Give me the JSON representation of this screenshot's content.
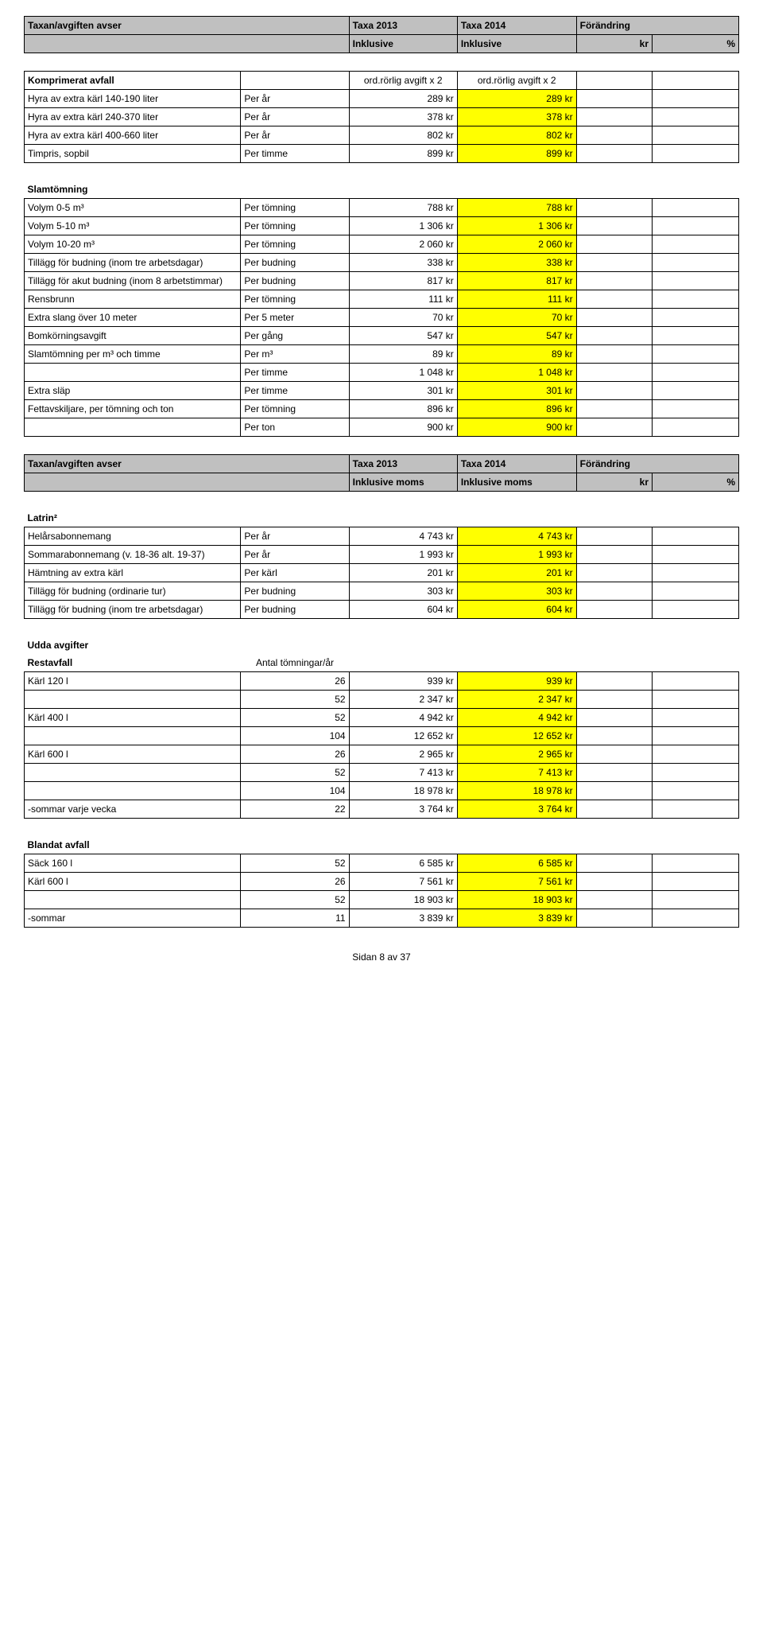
{
  "header": {
    "c1": "Taxan/avgiften avser",
    "c3": "Taxa 2013",
    "c4": "Taxa 2014",
    "c5": "Förändring",
    "r2c3": "Inklusive",
    "r2c4": "Inklusive",
    "r2c5": "kr",
    "r2c6": "%"
  },
  "komp": {
    "title": "Komprimerat avfall",
    "hdr13": "ord.rörlig avgift x 2",
    "hdr14": "ord.rörlig avgift x 2",
    "rows": [
      {
        "desc": "Hyra av extra kärl 140-190 liter",
        "unit": "Per år",
        "v13": "289 kr",
        "v14": "289 kr"
      },
      {
        "desc": "Hyra av extra kärl 240-370 liter",
        "unit": "Per år",
        "v13": "378 kr",
        "v14": "378 kr"
      },
      {
        "desc": "Hyra av extra kärl 400-660 liter",
        "unit": "Per år",
        "v13": "802 kr",
        "v14": "802 kr"
      },
      {
        "desc": "Timpris, sopbil",
        "unit": "Per timme",
        "v13": "899 kr",
        "v14": "899 kr"
      }
    ]
  },
  "slam": {
    "title": "Slamtömning",
    "rows": [
      {
        "desc": "Volym 0-5 m³",
        "unit": "Per tömning",
        "v13": "788 kr",
        "v14": "788 kr"
      },
      {
        "desc": "Volym 5-10 m³",
        "unit": "Per tömning",
        "v13": "1 306 kr",
        "v14": "1 306 kr"
      },
      {
        "desc": "Volym 10-20 m³",
        "unit": "Per tömning",
        "v13": "2 060 kr",
        "v14": "2 060 kr"
      },
      {
        "desc": "Tillägg för budning (inom tre arbetsdagar)",
        "unit": "Per budning",
        "v13": "338 kr",
        "v14": "338 kr"
      },
      {
        "desc": "Tillägg för akut budning (inom 8 arbetstimmar)",
        "unit": "Per budning",
        "v13": "817 kr",
        "v14": "817 kr"
      },
      {
        "desc": "Rensbrunn",
        "unit": "Per tömning",
        "v13": "111 kr",
        "v14": "111 kr"
      },
      {
        "desc": "Extra slang över 10 meter",
        "unit": "Per 5 meter",
        "v13": "70 kr",
        "v14": "70 kr"
      },
      {
        "desc": "Bomkörningsavgift",
        "unit": "Per gång",
        "v13": "547 kr",
        "v14": "547 kr"
      },
      {
        "desc": "Slamtömning per m³ och timme",
        "unit": "Per m³",
        "v13": "89 kr",
        "v14": "89 kr"
      },
      {
        "desc": "",
        "unit": "Per timme",
        "v13": "1 048 kr",
        "v14": "1 048 kr"
      },
      {
        "desc": "Extra släp",
        "unit": "Per timme",
        "v13": "301 kr",
        "v14": "301 kr"
      },
      {
        "desc": "Fettavskiljare, per tömning och ton",
        "unit": "Per tömning",
        "v13": "896 kr",
        "v14": "896 kr"
      },
      {
        "desc": "",
        "unit": "Per ton",
        "v13": "900 kr",
        "v14": "900 kr"
      }
    ]
  },
  "header2": {
    "c1": "Taxan/avgiften avser",
    "c3": "Taxa 2013",
    "c4": "Taxa 2014",
    "c5": "Förändring",
    "r2c3": "Inklusive moms",
    "r2c4": "Inklusive moms",
    "r2c5": "kr",
    "r2c6": "%"
  },
  "latrin": {
    "title": "Latrin²",
    "rows": [
      {
        "desc": "Helårsabonnemang",
        "unit": "Per år",
        "v13": "4 743 kr",
        "v14": "4 743 kr"
      },
      {
        "desc": "Sommarabonnemang (v. 18-36 alt. 19-37)",
        "unit": "Per år",
        "v13": "1 993 kr",
        "v14": "1 993 kr"
      },
      {
        "desc": "Hämtning av extra kärl",
        "unit": "Per kärl",
        "v13": "201 kr",
        "v14": "201 kr"
      },
      {
        "desc": "Tillägg för budning (ordinarie tur)",
        "unit": "Per budning",
        "v13": "303 kr",
        "v14": "303 kr"
      },
      {
        "desc": "Tillägg för budning (inom tre arbetsdagar)",
        "unit": "Per budning",
        "v13": "604 kr",
        "v14": "604 kr"
      }
    ]
  },
  "udda": {
    "title": "Udda avgifter",
    "sub": "Restavfall",
    "unit_hdr": "Antal tömningar/år",
    "rows": [
      {
        "desc": "Kärl 120 l",
        "unit": "26",
        "v13": "939 kr",
        "v14": "939 kr"
      },
      {
        "desc": "",
        "unit": "52",
        "v13": "2 347 kr",
        "v14": "2 347 kr"
      },
      {
        "desc": "Kärl 400 l",
        "unit": "52",
        "v13": "4 942 kr",
        "v14": "4 942 kr"
      },
      {
        "desc": "",
        "unit": "104",
        "v13": "12 652 kr",
        "v14": "12 652 kr"
      },
      {
        "desc": "Kärl 600 l",
        "unit": "26",
        "v13": "2 965 kr",
        "v14": "2 965 kr"
      },
      {
        "desc": "",
        "unit": "52",
        "v13": "7 413 kr",
        "v14": "7 413 kr"
      },
      {
        "desc": "",
        "unit": "104",
        "v13": "18 978 kr",
        "v14": "18 978 kr"
      },
      {
        "desc": "-sommar varje vecka",
        "unit": "22",
        "v13": "3 764 kr",
        "v14": "3 764 kr"
      }
    ]
  },
  "blandat": {
    "title": "Blandat avfall",
    "rows": [
      {
        "desc": "Säck 160 l",
        "unit": "52",
        "v13": "6 585 kr",
        "v14": "6 585 kr"
      },
      {
        "desc": "Kärl 600 l",
        "unit": "26",
        "v13": "7 561 kr",
        "v14": "7 561 kr"
      },
      {
        "desc": "",
        "unit": "52",
        "v13": "18 903 kr",
        "v14": "18 903 kr"
      },
      {
        "desc": "-sommar",
        "unit": "11",
        "v13": "3 839 kr",
        "v14": "3 839 kr"
      }
    ]
  },
  "footer": "Sidan 8 av 37"
}
